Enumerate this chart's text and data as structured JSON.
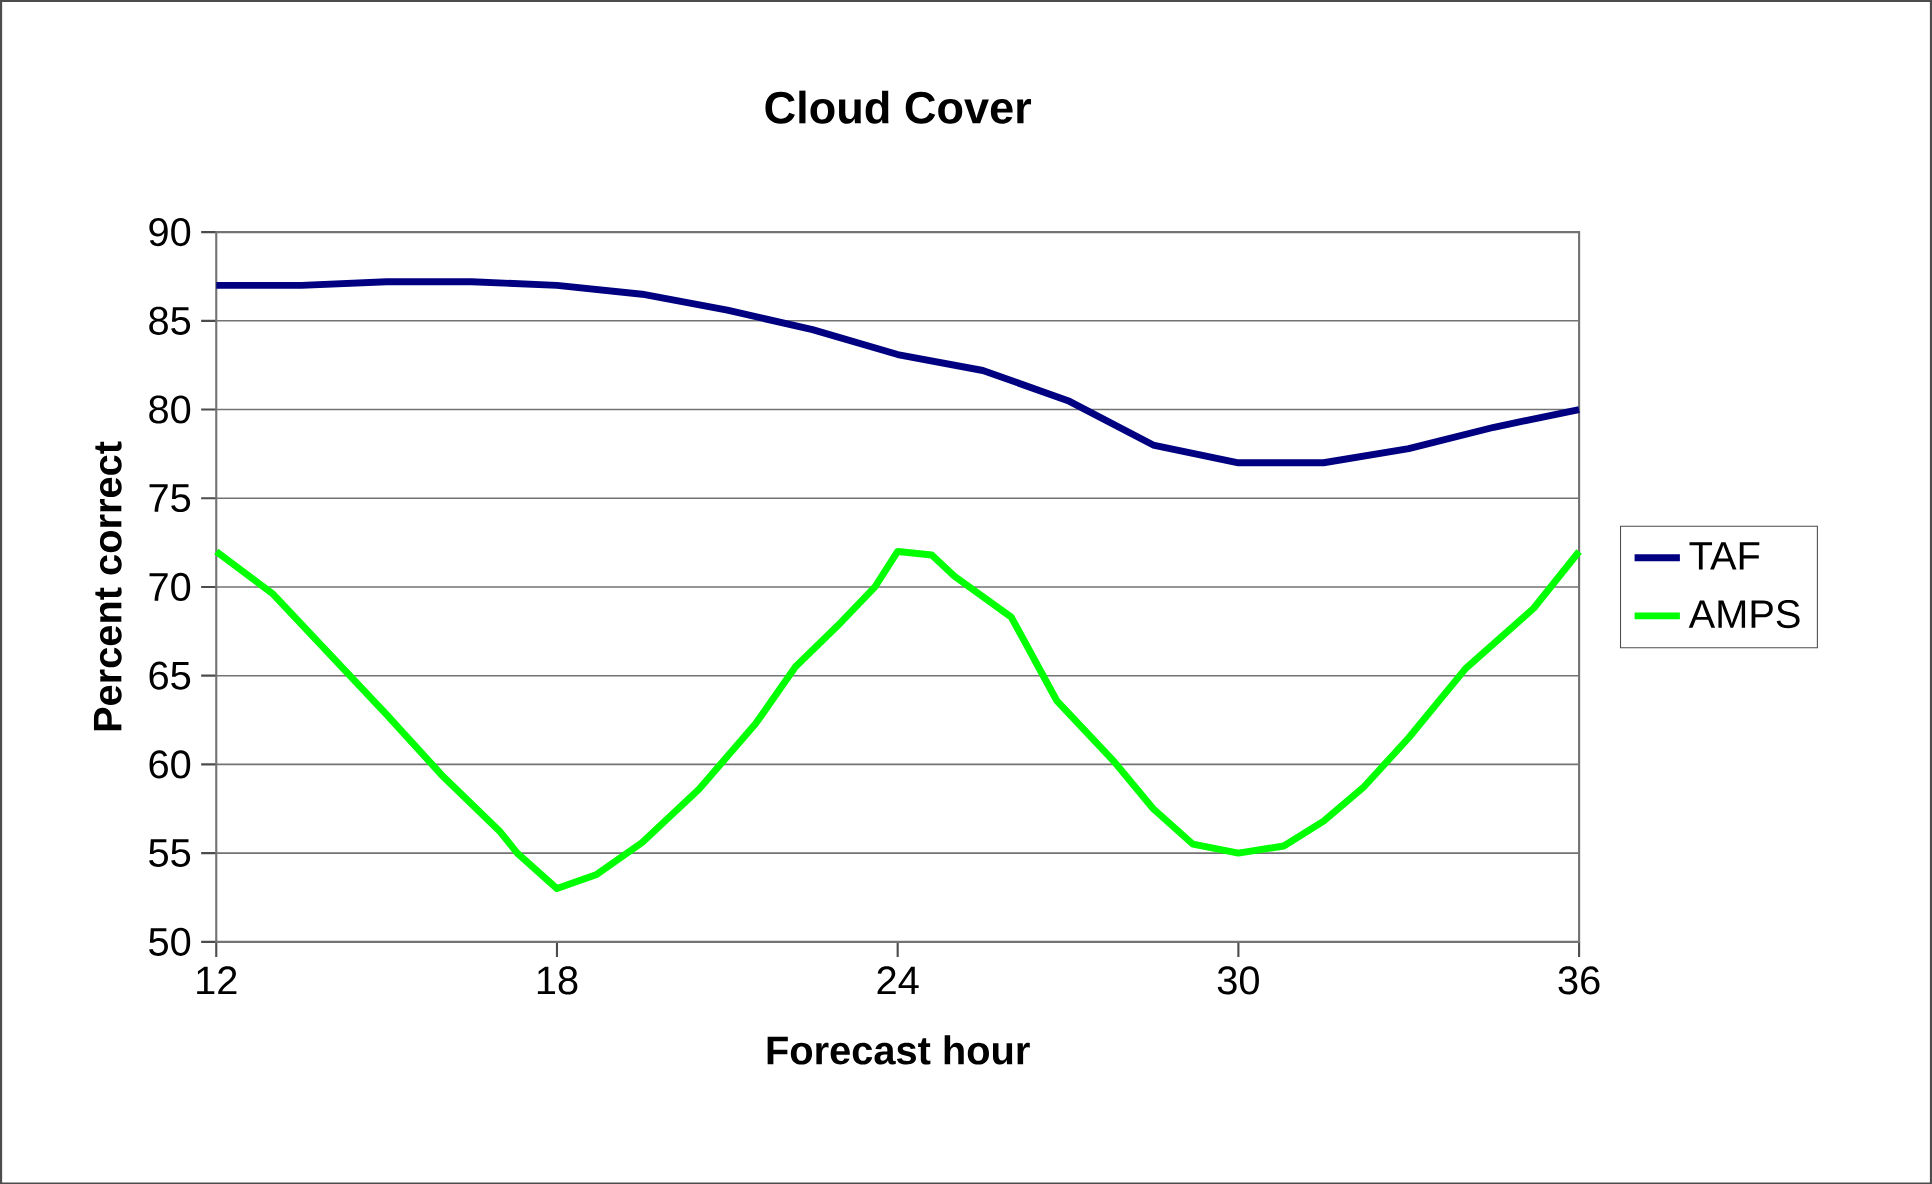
{
  "chart_data": {
    "type": "line",
    "title": "Cloud Cover",
    "xlabel": "Forecast hour",
    "ylabel": "Percent correct",
    "xlim": [
      12,
      36
    ],
    "xticks": [
      12,
      18,
      24,
      30,
      36
    ],
    "ylim": [
      50,
      90
    ],
    "yticks": [
      50,
      55,
      60,
      65,
      70,
      75,
      80,
      85,
      90
    ],
    "grid": "y",
    "legend": "right",
    "marker": "none",
    "line_style": "solid",
    "series": [
      {
        "name": "TAF",
        "color": "#000080",
        "x": [
          12,
          13.5,
          15,
          16.5,
          18,
          19.5,
          21,
          22.5,
          24,
          25.5,
          27,
          28.5,
          30,
          31.5,
          33,
          34.5,
          36
        ],
        "values": [
          87,
          87,
          87.2,
          87.2,
          87,
          86.5,
          85.6,
          84.5,
          83.1,
          82.2,
          80.5,
          78,
          77,
          77,
          77.8,
          79,
          80
        ]
      },
      {
        "name": "AMPS",
        "color": "#00ff00",
        "x": [
          12,
          13,
          14,
          15,
          16,
          17,
          17.3,
          18,
          18.7,
          19.5,
          20.5,
          21.5,
          22.2,
          23,
          23.6,
          24,
          24.6,
          25,
          26,
          26.8,
          27.8,
          28.5,
          29.2,
          30,
          30.8,
          31.5,
          32.2,
          33,
          34,
          35.2,
          36
        ],
        "values": [
          72,
          69.6,
          66.2,
          62.8,
          59.3,
          56.2,
          55,
          53,
          53.8,
          55.6,
          58.6,
          62.3,
          65.5,
          68,
          70,
          72,
          71.8,
          70.6,
          68.3,
          63.6,
          60.2,
          57.5,
          55.5,
          55,
          55.4,
          56.8,
          58.7,
          61.5,
          65.4,
          68.8,
          72
        ]
      }
    ]
  }
}
